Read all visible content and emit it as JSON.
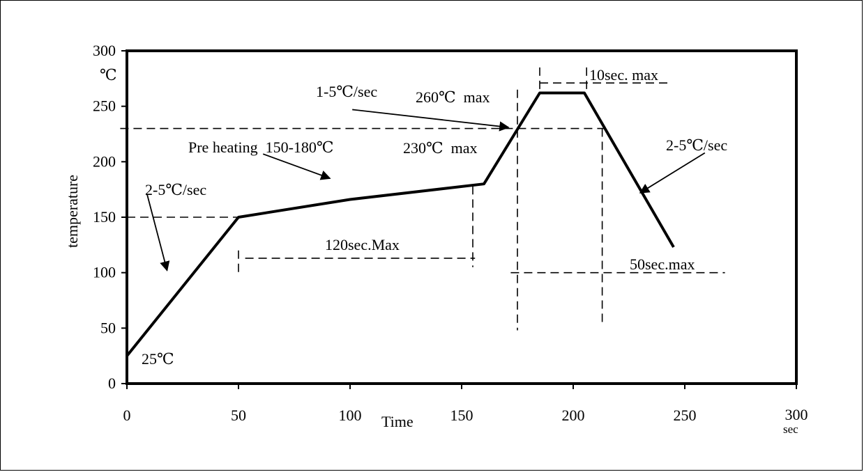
{
  "chart_data": {
    "type": "line",
    "title": "",
    "xlabel": "Time",
    "ylabel": "temperature",
    "x_unit": "sec",
    "y_unit": "℃",
    "xlim": [
      0,
      300
    ],
    "ylim": [
      0,
      300
    ],
    "x_ticks": [
      "0",
      "50",
      "100",
      "150",
      "200",
      "250",
      "300"
    ],
    "y_ticks": [
      "0",
      "50",
      "100",
      "150",
      "200",
      "250",
      "300"
    ],
    "grid": false,
    "legend": "none",
    "series": [
      {
        "x": [
          0,
          50,
          100,
          160,
          185,
          205,
          245
        ],
        "y": [
          25,
          150,
          166,
          180,
          262,
          262,
          123
        ]
      }
    ],
    "annotations": {
      "start_temp": "25℃",
      "ramp_up_1": "2-5℃/sec",
      "preheat": "Pre heating  150-180℃",
      "preheat_time": "120sec.Max",
      "ramp_up_2": "1-5℃/sec",
      "peak": "260℃  max",
      "reflow_temp": "230℃  max",
      "peak_time": "10sec. max",
      "cool_down": "2-5℃/sec",
      "reflow_time": "50sec.max"
    }
  }
}
